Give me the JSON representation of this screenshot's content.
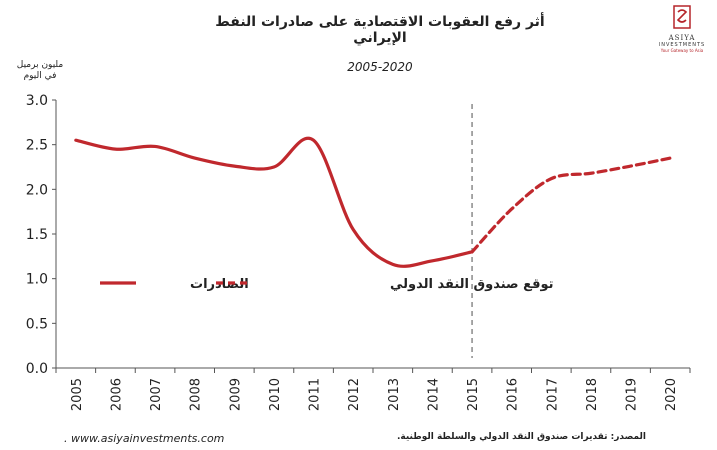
{
  "header": {
    "title": "أثر رفع العقوبات الاقتصادية على صادرات النفط الإيراني",
    "subtitle": "2005-2020"
  },
  "logo": {
    "name": "ASIYA",
    "sub": "INVESTMENTS",
    "tagline": "Your Gateway to Asia"
  },
  "footer": {
    "website": ". www.asiyainvestments.com",
    "source": "المصدر: تقديرات صندوق النقد الدولي والسلطة الوطنية."
  },
  "colors": {
    "series": "#c0282d",
    "divider": "#8a8a8a"
  },
  "chart_data": {
    "type": "line",
    "ylabel": "مليون برميل في اليوم",
    "ylim": [
      0,
      3.0
    ],
    "yticks": [
      "0.0",
      "0.5",
      "1.0",
      "1.5",
      "2.0",
      "2.5",
      "3.0"
    ],
    "categories": [
      "2005",
      "2006",
      "2007",
      "2008",
      "2009",
      "2010",
      "2011",
      "2012",
      "2013",
      "2014",
      "2015",
      "2016",
      "2017",
      "2018",
      "2019",
      "2020"
    ],
    "vertical_marker": "2015",
    "legend_position": "center-left",
    "series": [
      {
        "name": "الصادرات",
        "style": "solid",
        "x": [
          "2005",
          "2006",
          "2007",
          "2008",
          "2009",
          "2010",
          "2011",
          "2012",
          "2013",
          "2014",
          "2015"
        ],
        "values": [
          2.55,
          2.45,
          2.48,
          2.35,
          2.26,
          2.25,
          2.55,
          1.55,
          1.16,
          1.2,
          1.3
        ]
      },
      {
        "name": "توقع صندوق النقد الدولي",
        "style": "dashed",
        "x": [
          "2015",
          "2016",
          "2017",
          "2018",
          "2019",
          "2020"
        ],
        "values": [
          1.3,
          1.78,
          2.12,
          2.18,
          2.26,
          2.35
        ]
      }
    ]
  }
}
